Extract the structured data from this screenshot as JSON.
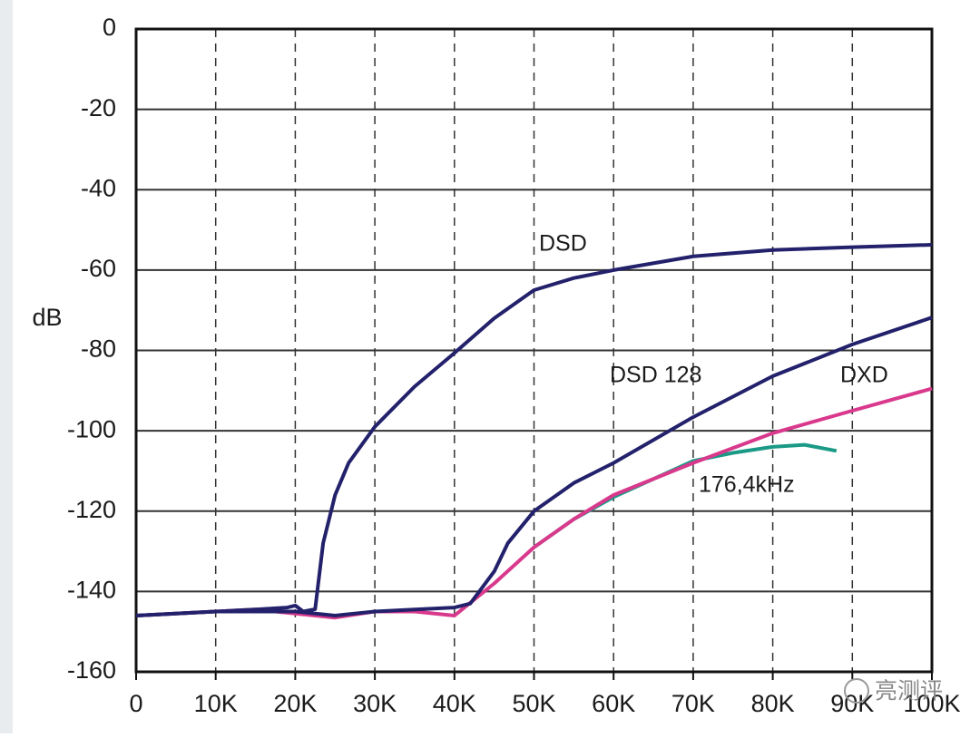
{
  "chart_data": {
    "type": "line",
    "ylabel": "dB",
    "xlim": [
      0,
      100000
    ],
    "ylim": [
      -160,
      0
    ],
    "xticks": [
      0,
      {
        "value": 10000,
        "label": "10K"
      },
      {
        "value": 20000,
        "label": "20K"
      },
      {
        "value": 30000,
        "label": "30K"
      },
      {
        "value": 40000,
        "label": "40K"
      },
      {
        "value": 50000,
        "label": "50K"
      },
      {
        "value": 60000,
        "label": "60K"
      },
      {
        "value": 70000,
        "label": "70K"
      },
      {
        "value": 80000,
        "label": "80K"
      },
      {
        "value": 90000,
        "label": "90K"
      },
      {
        "value": 100000,
        "label": "100K"
      }
    ],
    "yticks": [
      0,
      -20,
      -40,
      -60,
      -80,
      -100,
      -120,
      -140,
      -160
    ],
    "grid": true,
    "watermark": "亮测评",
    "series": [
      {
        "name": "DSD",
        "color": "#23216b",
        "x": [
          0,
          5000,
          10000,
          15000,
          19000,
          20000,
          21000,
          22500,
          23500,
          25000,
          26700,
          30000,
          35000,
          39800,
          45000,
          50000,
          55000,
          60000,
          70000,
          80000,
          90000,
          100000
        ],
        "values": [
          -146,
          -145.5,
          -145,
          -144.5,
          -144,
          -143.5,
          -145,
          -144.4,
          -128,
          -116,
          -108,
          -99,
          -89,
          -81,
          -72,
          -65,
          -62,
          -60,
          -56.6,
          -55,
          -54.3,
          -53.7
        ]
      },
      {
        "name": "DSD 128",
        "color": "#23216b",
        "x": [
          0,
          10000,
          20000,
          25000,
          30000,
          35000,
          40000,
          42000,
          45000,
          46700,
          50000,
          55000,
          60000,
          70000,
          80000,
          90000,
          100000
        ],
        "values": [
          -146,
          -145,
          -145,
          -146,
          -145,
          -144.5,
          -144,
          -143,
          -135,
          -128,
          -120,
          -113,
          -108,
          -96.6,
          -86.4,
          -78.5,
          -71.8
        ]
      },
      {
        "name": "DXD",
        "color": "#d9398c",
        "x": [
          0,
          10000,
          15000,
          20000,
          25000,
          30000,
          35000,
          40000,
          45000,
          50000,
          55000,
          60000,
          70000,
          80000,
          90000,
          100000
        ],
        "values": [
          -146,
          -145,
          -144.5,
          -145.5,
          -146.5,
          -145,
          -145,
          -146,
          -138,
          -129,
          -122,
          -116,
          -108,
          -100.6,
          -95,
          -89.5
        ]
      },
      {
        "name": "176,4kHz",
        "color": "#1a9a86",
        "x": [
          50000,
          55000,
          60000,
          65000,
          70000,
          75000,
          80000,
          84000,
          88000
        ],
        "values": [
          -129,
          -122,
          -116.5,
          -112,
          -107.5,
          -105.5,
          -104,
          -103.5,
          -105
        ]
      }
    ]
  }
}
